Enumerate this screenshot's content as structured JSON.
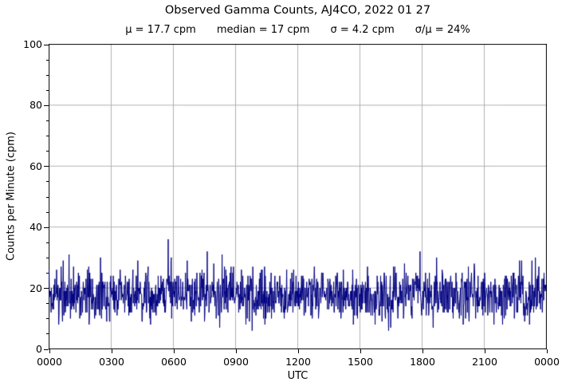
{
  "chart_data": {
    "type": "line",
    "title": "Observed Gamma Counts, AJ4CO, 2022 01 27",
    "subtitle_stats": {
      "mu": "μ = 17.7 cpm",
      "median": "median = 17 cpm",
      "sigma": "σ = 4.2 cpm",
      "sigma_over_mu": "σ/μ = 24%"
    },
    "xlabel": "UTC",
    "ylabel": "Counts per Minute (cpm)",
    "x_tick_labels": [
      "0000",
      "0300",
      "0600",
      "0900",
      "1200",
      "1500",
      "1800",
      "2100",
      "0000"
    ],
    "x_tick_interval_minutes": 180,
    "x_range_minutes": [
      0,
      1440
    ],
    "y_tick_values": [
      0,
      20,
      40,
      60,
      80,
      100
    ],
    "y_minor_tick_step": 5,
    "ylim": [
      0,
      100
    ],
    "grid": true,
    "legend": "none",
    "colors": {
      "line": "#000080",
      "grid": "#b0b0b0",
      "axis": "#000000",
      "text": "#000000",
      "background": "#ffffff"
    },
    "series": {
      "name": "observed gamma counts",
      "sample_interval_minutes": 1,
      "n_points": 1440,
      "distribution": "poisson",
      "mean_cpm": 17.7,
      "median_cpm": 17,
      "sigma_cpm": 4.2,
      "sigma_over_mu_pct": 24,
      "observed_min_cpm": 5,
      "observed_max_cpm": 36,
      "max_spike_minute": 345,
      "seed": 20220127
    }
  }
}
